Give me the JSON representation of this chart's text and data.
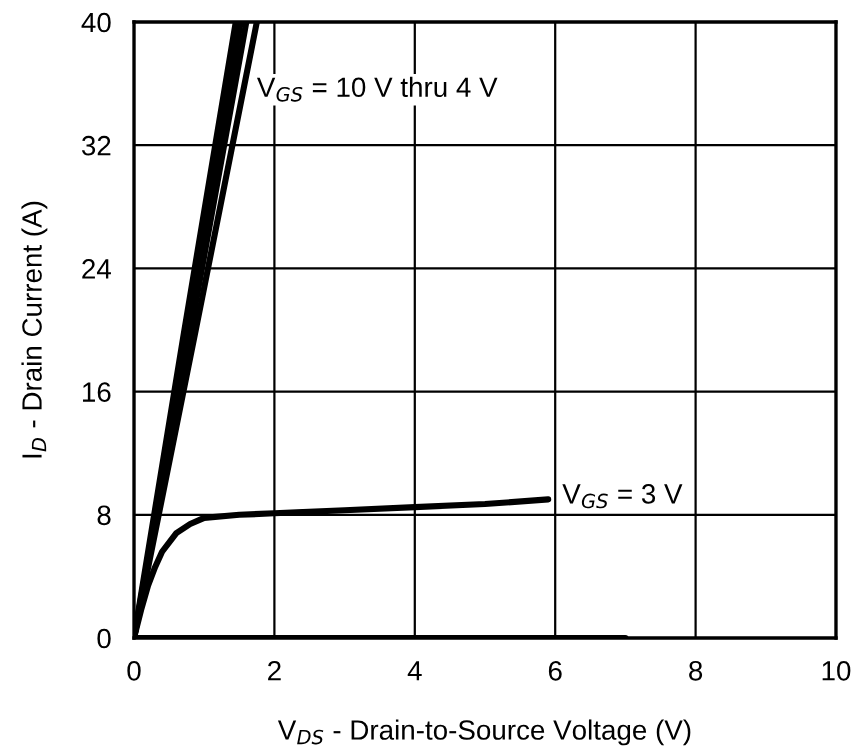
{
  "chart_data": {
    "type": "line",
    "xlabel": "V$_{DS}$ - Drain-to-Source Voltage (V)",
    "ylabel": "I$_{D}$ - Drain Current (A)",
    "xlim": [
      0,
      10
    ],
    "ylim": [
      0,
      40
    ],
    "xticks": [
      0,
      2,
      4,
      6,
      8,
      10
    ],
    "yticks": [
      0,
      8,
      16,
      24,
      32,
      40
    ],
    "grid": true,
    "marker": "none",
    "line_style": "solid",
    "series": [
      {
        "color": "#000000",
        "x": [
          0,
          0.7,
          1.45
        ],
        "values": [
          0,
          19.5,
          40
        ]
      },
      {
        "color": "#000000",
        "x": [
          0,
          0.75,
          1.52
        ],
        "values": [
          0,
          19.5,
          40
        ]
      },
      {
        "color": "#000000",
        "x": [
          0,
          0.79,
          1.6
        ],
        "values": [
          0,
          19.5,
          40
        ]
      },
      {
        "color": "#000000",
        "x": [
          0,
          0.88,
          1.75
        ],
        "values": [
          0,
          20,
          40
        ]
      },
      {
        "color": "#000000",
        "x": [
          0,
          0.1,
          0.2,
          0.3,
          0.4,
          0.6,
          0.8,
          1,
          1.5,
          2,
          3,
          4,
          5,
          5.9
        ],
        "values": [
          0,
          1.8,
          3.4,
          4.6,
          5.6,
          6.8,
          7.4,
          7.8,
          8.0,
          8.1,
          8.3,
          8.5,
          8.7,
          9.0
        ]
      },
      {
        "color": "#000000",
        "x": [
          0,
          7
        ],
        "values": [
          0,
          0
        ]
      }
    ],
    "annotations": [
      "V$_{GS}$ = 10 V thru 4 V",
      "V$_{GS}$ = 3 V"
    ]
  }
}
